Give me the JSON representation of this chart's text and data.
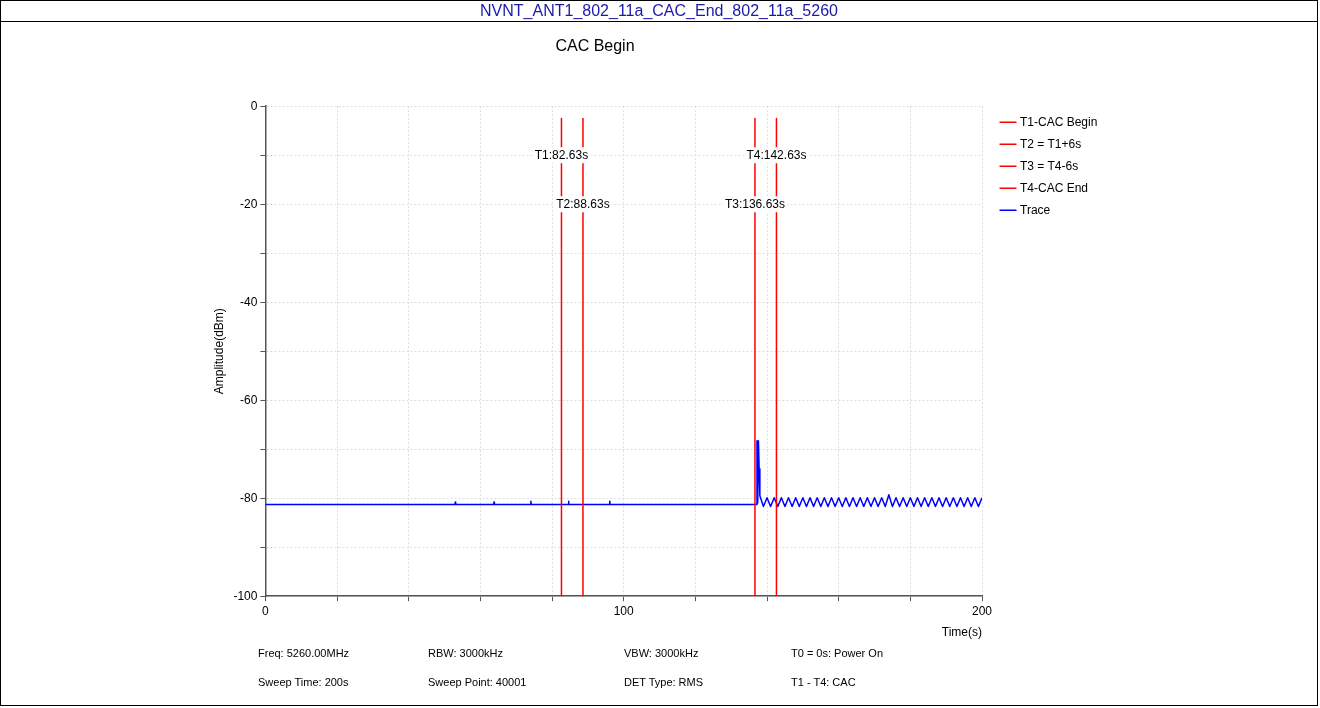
{
  "chart_data": {
    "type": "line",
    "title": "NVNT_ANT1_802_11a_CAC_End_802_11a_5260",
    "subtitle": "CAC Begin",
    "xlabel": "Time(s)",
    "ylabel": "Amplitude(dBm)",
    "xlim": [
      0,
      200
    ],
    "xticks": [
      0,
      {
        "value": 20,
        "label": null
      },
      {
        "value": 40,
        "label": null
      },
      {
        "value": 60,
        "label": null
      },
      {
        "value": 80,
        "label": null
      },
      100,
      {
        "value": 120,
        "label": null
      },
      {
        "value": 140,
        "label": null
      },
      {
        "value": 160,
        "label": null
      },
      {
        "value": 180,
        "label": null
      },
      200
    ],
    "ylim": [
      -100,
      0
    ],
    "yticks": [
      -100,
      {
        "value": -90,
        "label": null
      },
      -80,
      {
        "value": -70,
        "label": null
      },
      -60,
      {
        "value": -50,
        "label": null
      },
      -40,
      {
        "value": -30,
        "label": null
      },
      -20,
      {
        "value": -10,
        "label": null
      },
      0
    ],
    "grid": true,
    "legend": "top right",
    "marker": "none",
    "line_style": "solid",
    "series": [
      {
        "name": "T1-CAC Begin",
        "color": "#ff0000",
        "x": [
          82.63,
          82.63
        ],
        "values": [
          -2.5,
          -100
        ]
      },
      {
        "name": "T2 = T1+6s",
        "color": "#ff0000",
        "x": [
          88.63,
          88.63
        ],
        "values": [
          -2.5,
          -100
        ]
      },
      {
        "name": "T3 = T4-6s",
        "color": "#ff0000",
        "x": [
          136.63,
          136.63
        ],
        "values": [
          -2.5,
          -100
        ]
      },
      {
        "name": "T4-CAC End",
        "color": "#ff0000",
        "x": [
          142.63,
          142.63
        ],
        "values": [
          -2.5,
          -100
        ]
      },
      {
        "name": "Trace",
        "color": "#0000ff",
        "x": [
          0,
          52.9,
          53,
          53.1,
          63.7,
          63.8,
          63.9,
          74,
          74.1,
          74.2,
          84.5,
          84.6,
          84.7,
          96,
          96.1,
          96.2,
          137.1,
          137.2,
          137.4,
          137.6,
          137.8,
          138,
          139,
          140,
          141,
          142,
          143,
          144,
          145,
          146,
          147,
          148,
          149,
          150,
          151,
          152,
          153,
          154,
          155,
          156,
          157,
          158,
          159,
          160,
          161,
          162,
          163,
          164,
          165,
          166,
          167,
          168,
          169,
          170,
          171,
          172,
          173,
          174,
          175,
          176,
          177,
          178,
          179,
          180,
          181,
          182,
          183,
          184,
          185,
          186,
          187,
          188,
          189,
          190,
          191,
          192,
          193,
          194,
          195,
          196,
          197,
          198,
          199,
          200
        ],
        "values": [
          -81.3,
          -81.3,
          -80.8,
          -81.3,
          -81.3,
          -80.8,
          -81.3,
          -81.3,
          -80.6,
          -81.3,
          -81.3,
          -80.6,
          -81.3,
          -81.3,
          -80.6,
          -81.3,
          -81.3,
          -68.3,
          -81,
          -68.3,
          -74,
          -79.5,
          -81.7,
          -79.9,
          -81.7,
          -79.9,
          -81.7,
          -79.9,
          -81.7,
          -79.9,
          -81.7,
          -79.9,
          -81.7,
          -79.9,
          -81.7,
          -79.9,
          -81.7,
          -79.9,
          -81.7,
          -79.9,
          -81.7,
          -79.9,
          -81.7,
          -79.9,
          -81.7,
          -79.9,
          -81.7,
          -79.9,
          -81.7,
          -79.9,
          -81.7,
          -79.9,
          -81.7,
          -79.9,
          -81.7,
          -79.9,
          -81.7,
          -79.3,
          -81.7,
          -79.9,
          -81.7,
          -79.9,
          -81.7,
          -79.9,
          -81.7,
          -79.9,
          -81.7,
          -79.9,
          -81.7,
          -79.9,
          -81.7,
          -79.9,
          -81.7,
          -79.9,
          -81.7,
          -79.9,
          -81.7,
          -79.9,
          -81.7,
          -79.9,
          -81.7,
          -79.9,
          -81.7,
          -79.9
        ]
      }
    ],
    "annotations": [
      {
        "text": "T1:82.63s",
        "x": 82.63,
        "y": -10
      },
      {
        "text": "T2:88.63s",
        "x": 88.63,
        "y": -20
      },
      {
        "text": "T3:136.63s",
        "x": 136.63,
        "y": -20
      },
      {
        "text": "T4:142.63s",
        "x": 142.63,
        "y": -10
      },
      "Freq: 5260.00MHz",
      "RBW: 3000kHz",
      "VBW: 3000kHz",
      "T0 = 0s: Power On",
      "Sweep Time: 200s",
      "Sweep Point: 40001",
      "DET Type: RMS",
      "T1 - T4: CAC"
    ]
  }
}
